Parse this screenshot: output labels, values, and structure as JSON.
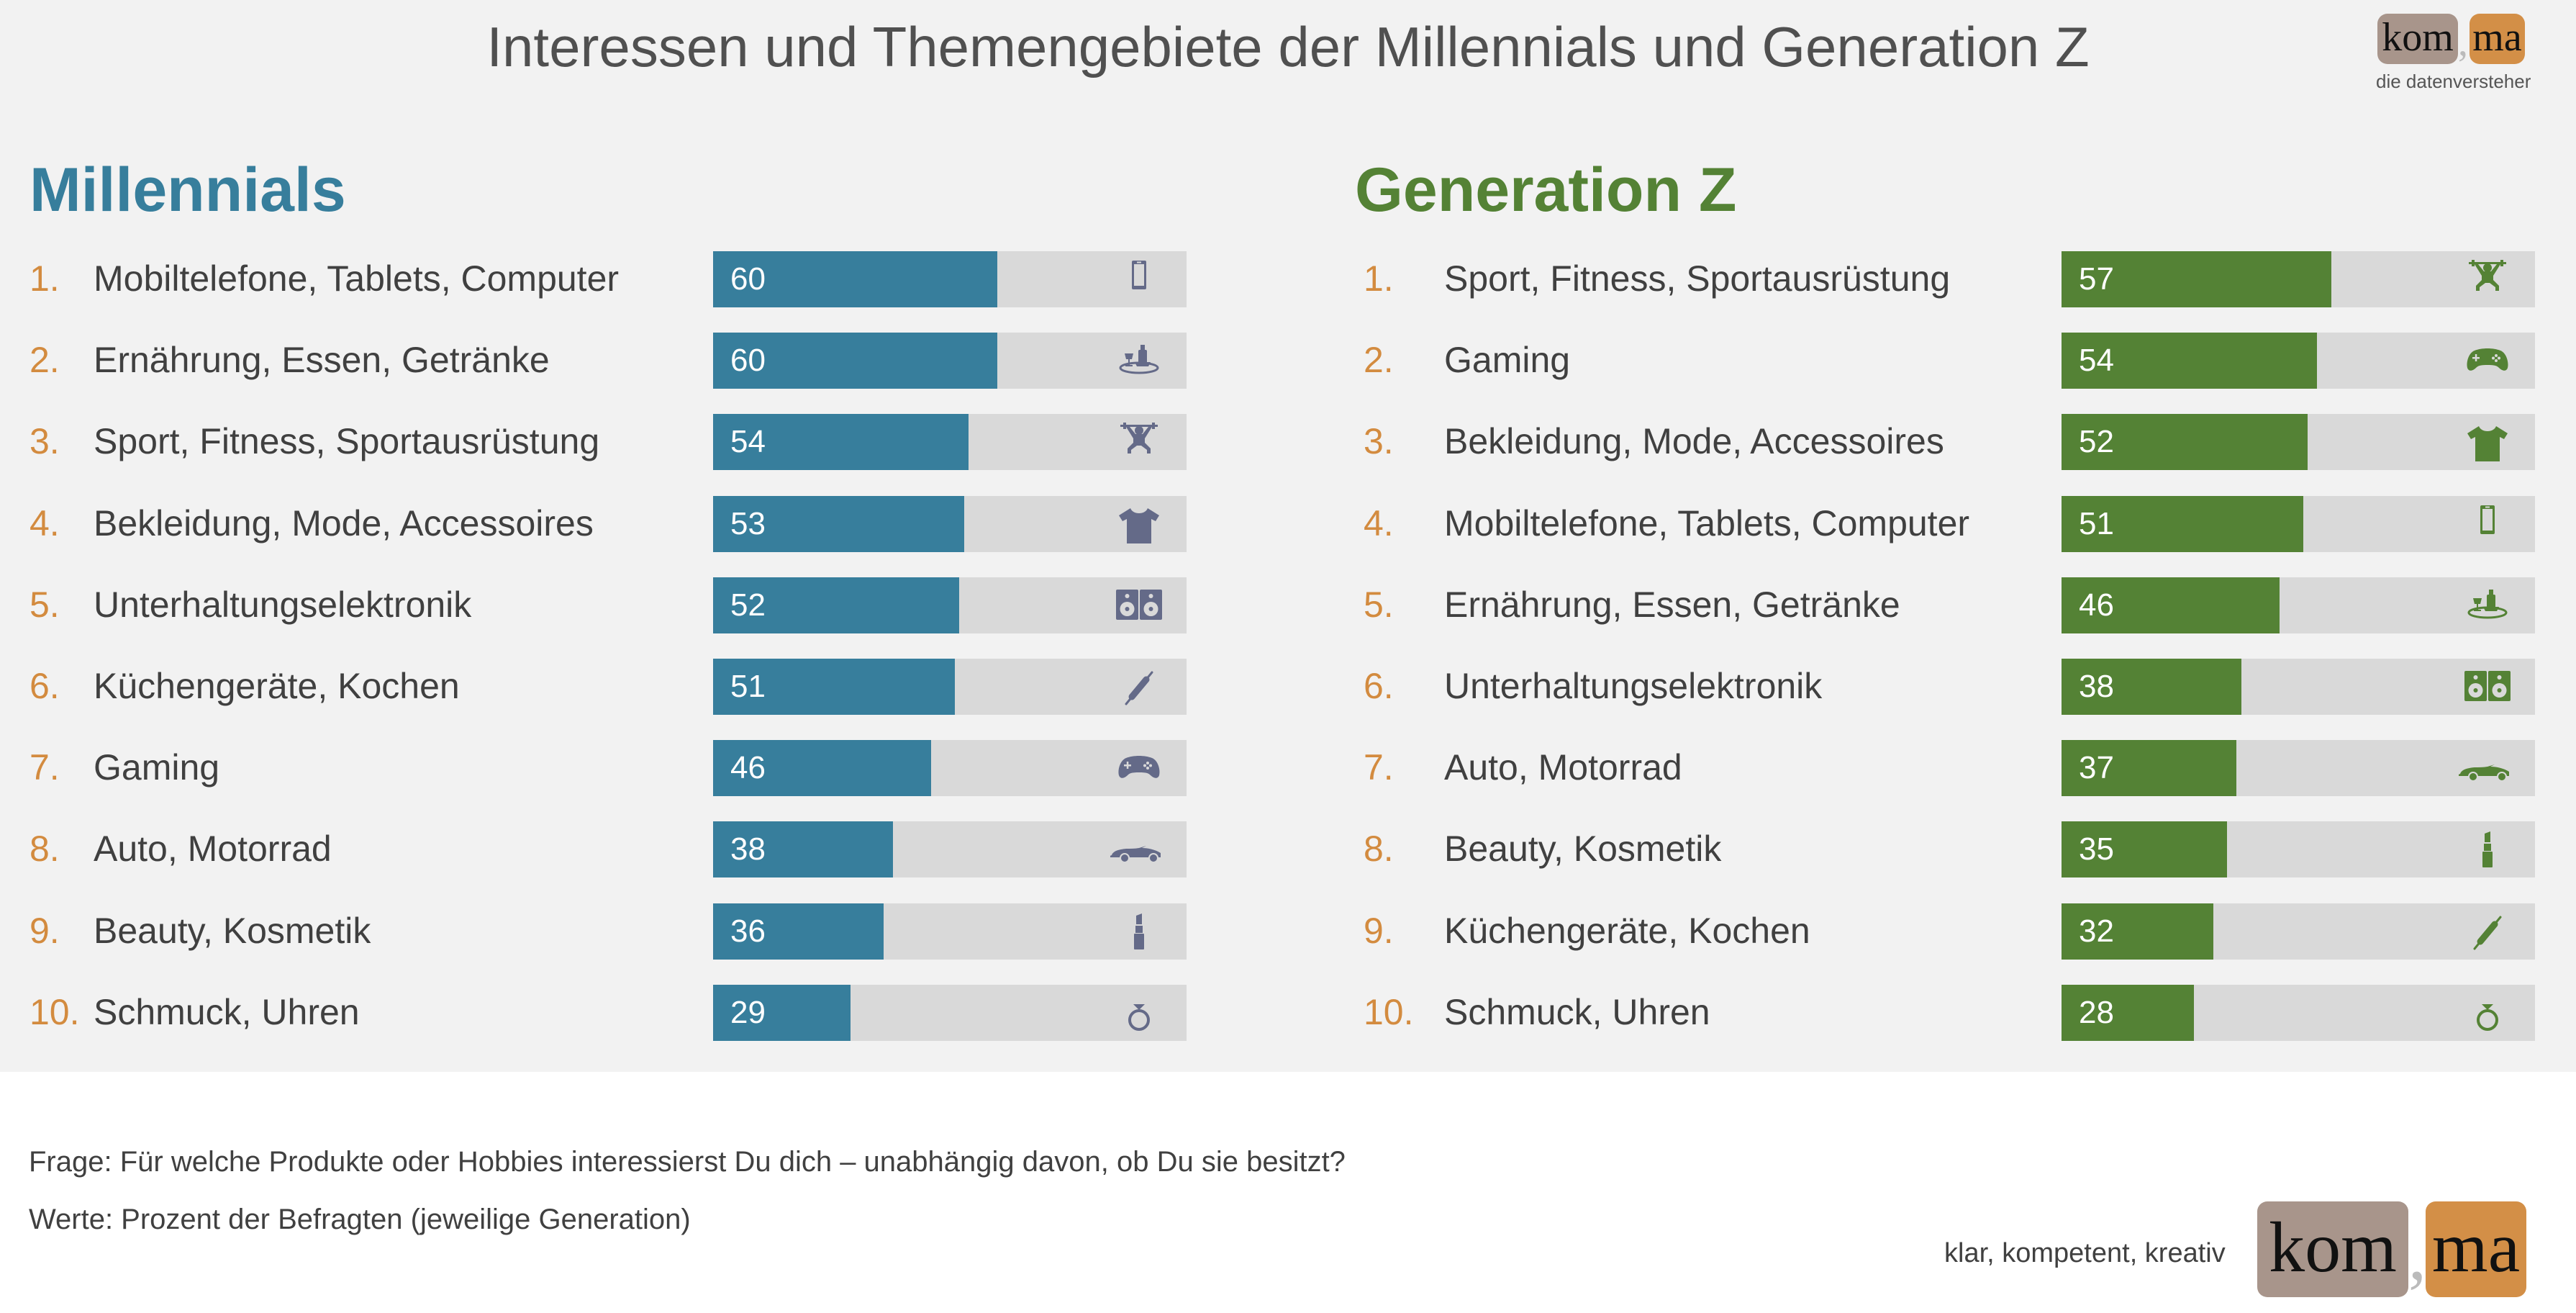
{
  "title": "Interessen und Themengebiete der Millennials und Generation Z",
  "logo": {
    "part1": "kom",
    "comma": ",",
    "part2": "ma",
    "tagline_top": "die datenversteher",
    "tagline_bottom": "klar, kompetent, kreativ"
  },
  "footer": {
    "question": "Frage: Für welche Produkte oder Hobbies interessierst Du dich – unabhängig davon, ob Du sie besitzt?",
    "values_note": "Werte: Prozent der Befragten (jeweilige Generation)"
  },
  "colors": {
    "millennials": "#377e9c",
    "genz": "#548235",
    "rank": "#d38b3f",
    "icon_millennials": "#646a88",
    "track": "#d9d9d9"
  },
  "chart_data": [
    {
      "type": "bar",
      "title": "Millennials",
      "color": "#377e9c",
      "xlim": [
        0,
        100
      ],
      "ranks": [
        "1.",
        "2.",
        "3.",
        "4.",
        "5.",
        "6.",
        "7.",
        "8.",
        "9.",
        "10."
      ],
      "categories": [
        "Mobiltelefone, Tablets, Computer",
        "Ernährung, Essen, Getränke",
        "Sport, Fitness, Sportausrüstung",
        "Bekleidung, Mode, Accessoires",
        "Unterhaltungselektronik",
        "Küchengeräte, Kochen",
        "Gaming",
        "Auto, Motorrad",
        "Beauty, Kosmetik",
        "Schmuck, Uhren"
      ],
      "values": [
        60,
        60,
        54,
        53,
        52,
        51,
        46,
        38,
        36,
        29
      ],
      "icons": [
        "phone-icon",
        "food-drink-icon",
        "weightlifter-icon",
        "tshirt-icon",
        "speakers-icon",
        "rolling-pin-icon",
        "gamepad-icon",
        "car-icon",
        "lipstick-icon",
        "ring-icon"
      ]
    },
    {
      "type": "bar",
      "title": "Generation Z",
      "color": "#548235",
      "xlim": [
        0,
        100
      ],
      "ranks": [
        "1.",
        "2.",
        "3.",
        "4.",
        "5.",
        "6.",
        "7.",
        "8.",
        "9.",
        "10."
      ],
      "categories": [
        "Sport, Fitness, Sportausrüstung",
        "Gaming",
        "Bekleidung, Mode, Accessoires",
        "Mobiltelefone, Tablets, Computer",
        "Ernährung, Essen, Getränke",
        "Unterhaltungselektronik",
        "Auto, Motorrad",
        "Beauty, Kosmetik",
        "Küchengeräte, Kochen",
        "Schmuck, Uhren"
      ],
      "values": [
        57,
        54,
        52,
        51,
        46,
        38,
        37,
        35,
        32,
        28
      ],
      "icons": [
        "weightlifter-icon",
        "gamepad-icon",
        "tshirt-icon",
        "phone-icon",
        "food-drink-icon",
        "speakers-icon",
        "car-icon",
        "lipstick-icon",
        "rolling-pin-icon",
        "ring-icon"
      ]
    }
  ]
}
